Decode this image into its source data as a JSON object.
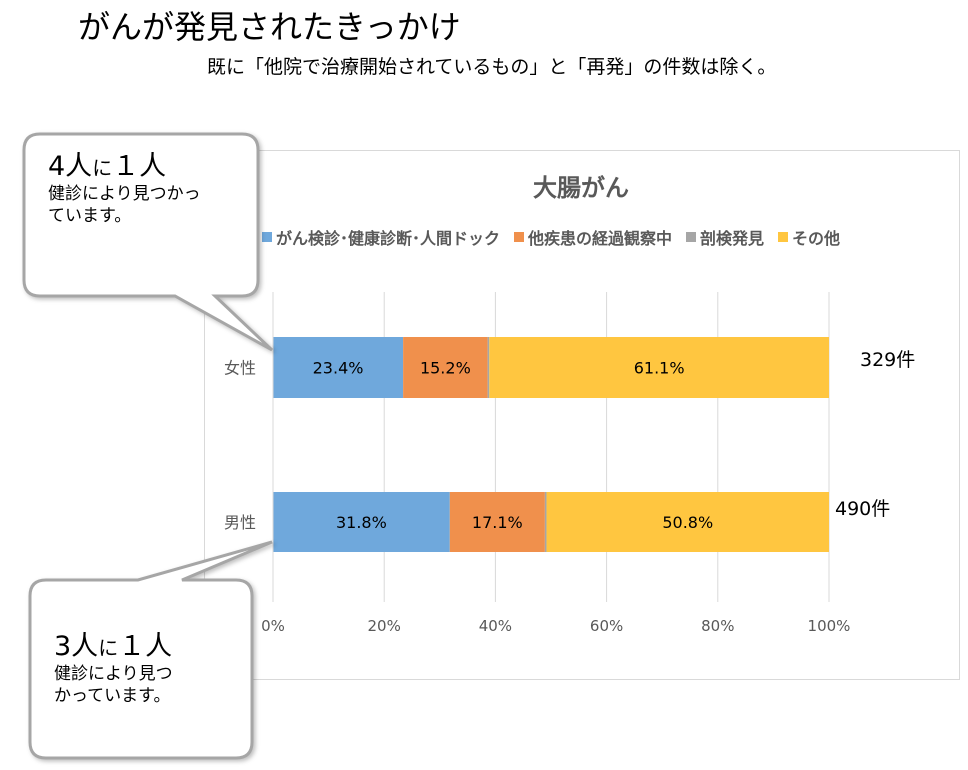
{
  "page": {
    "title": "がんが発見されたきっかけ",
    "subtitle": "既に「他院で治療開始されているもの」と「再発」の件数は除く。"
  },
  "callouts": [
    {
      "big_num": "4人",
      "big_mid": "に",
      "big_end": "１人",
      "lines": [
        "健診により見つかっ",
        "ています。"
      ]
    },
    {
      "big_num": "3人",
      "big_mid": "に",
      "big_end": "１人",
      "lines": [
        "健診により見つ",
        "かっています。"
      ]
    }
  ],
  "chart_data": {
    "type": "bar",
    "orientation": "horizontal",
    "stacked": "percent",
    "title": "大腸がん",
    "categories": [
      "女性",
      "男性"
    ],
    "series": [
      {
        "name": "がん検診･健康診断･人間ドック",
        "color": "#6fa8dc",
        "values": [
          23.4,
          31.8
        ],
        "labels": [
          "23.4%",
          "31.8%"
        ]
      },
      {
        "name": "他疾患の経過観察中",
        "color": "#f0904c",
        "values": [
          15.2,
          17.1
        ],
        "labels": [
          "15.2%",
          "17.1%"
        ]
      },
      {
        "name": "剖検発見",
        "color": "#a6a6a6",
        "values": [
          0.3,
          0.3
        ],
        "labels": [
          "",
          ""
        ]
      },
      {
        "name": "その他",
        "color": "#ffc640",
        "values": [
          61.1,
          50.8
        ],
        "labels": [
          "61.1%",
          "50.8%"
        ]
      }
    ],
    "totals": [
      "329件",
      "490件"
    ],
    "xlim": [
      0,
      100
    ],
    "xticks": [
      0,
      20,
      40,
      60,
      80,
      100
    ],
    "xtick_labels": [
      "0%",
      "20%",
      "40%",
      "60%",
      "80%",
      "100%"
    ],
    "legend_position": "top",
    "grid": "vertical"
  }
}
